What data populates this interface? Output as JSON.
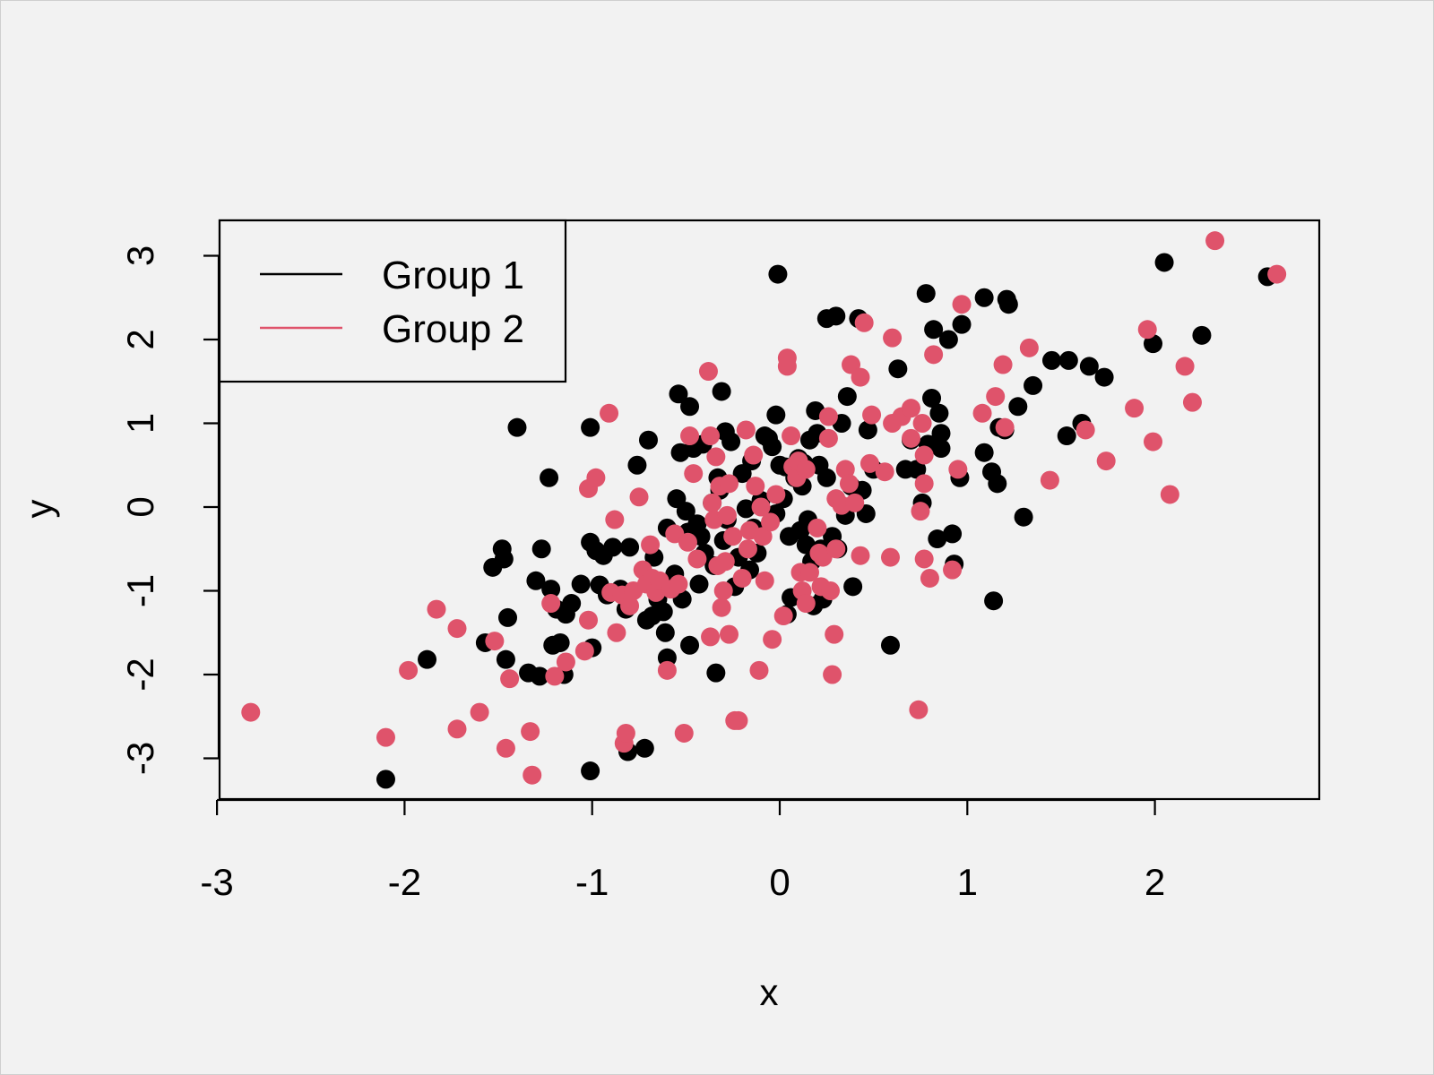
{
  "chart_data": {
    "type": "scatter",
    "title": "",
    "xlabel": "x",
    "ylabel": "y",
    "xlim": [
      -3,
      2.85
    ],
    "ylim": [
      -3.45,
      3.45
    ],
    "x_ticks": [
      "-3",
      "-2",
      "-1",
      "0",
      "1",
      "2"
    ],
    "y_ticks": [
      "-3",
      "-2",
      "-1",
      "0",
      "1",
      "2",
      "3"
    ],
    "grid": false,
    "legend_position": "top-left",
    "colors": {
      "group1": "#000000",
      "group2": "#df536b",
      "background": "#f2f2f2"
    },
    "series": [
      {
        "name": "Group 1",
        "color": "#000000",
        "points": [
          [
            -2.1,
            -3.25
          ],
          [
            -1.88,
            -1.82
          ],
          [
            -1.57,
            -1.62
          ],
          [
            -1.53,
            -0.72
          ],
          [
            -1.48,
            -0.5
          ],
          [
            -1.47,
            -0.62
          ],
          [
            -1.46,
            -1.82
          ],
          [
            -1.45,
            -1.32
          ],
          [
            -1.4,
            0.95
          ],
          [
            -1.34,
            -1.98
          ],
          [
            -1.3,
            -0.88
          ],
          [
            -1.28,
            -2.02
          ],
          [
            -1.27,
            -0.5
          ],
          [
            -1.23,
            0.35
          ],
          [
            -1.22,
            -0.98
          ],
          [
            -1.21,
            -1.65
          ],
          [
            -1.19,
            -1.22
          ],
          [
            -1.17,
            -1.62
          ],
          [
            -1.15,
            -2.0
          ],
          [
            -1.14,
            -1.28
          ],
          [
            -1.11,
            -1.15
          ],
          [
            -1.06,
            -0.92
          ],
          [
            -1.01,
            0.95
          ],
          [
            -1.01,
            -0.42
          ],
          [
            -1.01,
            -3.15
          ],
          [
            -1.0,
            -1.68
          ],
          [
            -0.98,
            -0.52
          ],
          [
            -0.96,
            -0.93
          ],
          [
            -0.94,
            -0.58
          ],
          [
            -0.92,
            -1.05
          ],
          [
            -0.89,
            -0.48
          ],
          [
            -0.85,
            -0.98
          ],
          [
            -0.82,
            -1.22
          ],
          [
            -0.81,
            -2.92
          ],
          [
            -0.8,
            -0.48
          ],
          [
            -0.76,
            0.5
          ],
          [
            -0.72,
            -2.88
          ],
          [
            -0.71,
            -1.35
          ],
          [
            -0.7,
            0.8
          ],
          [
            -0.68,
            -1.3
          ],
          [
            -0.67,
            -0.6
          ],
          [
            -0.65,
            -1.1
          ],
          [
            -0.62,
            -1.25
          ],
          [
            -0.61,
            -1.5
          ],
          [
            -0.6,
            -0.25
          ],
          [
            -0.6,
            -1.8
          ],
          [
            -0.58,
            -0.92
          ],
          [
            -0.56,
            -0.8
          ],
          [
            -0.55,
            0.1
          ],
          [
            -0.54,
            1.35
          ],
          [
            -0.53,
            0.65
          ],
          [
            -0.52,
            -1.1
          ],
          [
            -0.5,
            -0.05
          ],
          [
            -0.49,
            -0.3
          ],
          [
            -0.48,
            1.2
          ],
          [
            -0.48,
            -1.65
          ],
          [
            -0.46,
            0.7
          ],
          [
            -0.44,
            -0.2
          ],
          [
            -0.43,
            -0.92
          ],
          [
            -0.42,
            -0.35
          ],
          [
            -0.41,
            0.75
          ],
          [
            -0.4,
            -0.55
          ],
          [
            -0.36,
            0.05
          ],
          [
            -0.35,
            -0.7
          ],
          [
            -0.34,
            -1.98
          ],
          [
            -0.33,
            0.35
          ],
          [
            -0.32,
            0.2
          ],
          [
            -0.31,
            1.38
          ],
          [
            -0.3,
            -0.4
          ],
          [
            -0.29,
            0.9
          ],
          [
            -0.28,
            -0.15
          ],
          [
            -0.26,
            0.78
          ],
          [
            -0.24,
            -0.95
          ],
          [
            -0.22,
            -0.6
          ],
          [
            -0.2,
            0.4
          ],
          [
            -0.18,
            -0.02
          ],
          [
            -0.16,
            -0.75
          ],
          [
            -0.15,
            0.55
          ],
          [
            -0.14,
            -0.25
          ],
          [
            -0.12,
            -0.55
          ],
          [
            -0.1,
            0.08
          ],
          [
            -0.08,
            0.85
          ],
          [
            -0.06,
            0.82
          ],
          [
            -0.04,
            0.72
          ],
          [
            -0.02,
            -0.08
          ],
          [
            -0.02,
            1.1
          ],
          [
            -0.01,
            2.78
          ],
          [
            0.0,
            0.5
          ],
          [
            0.02,
            0.1
          ],
          [
            0.03,
            0.48
          ],
          [
            0.04,
            -1.28
          ],
          [
            0.05,
            -0.35
          ],
          [
            0.06,
            -1.08
          ],
          [
            0.08,
            0.35
          ],
          [
            0.1,
            0.58
          ],
          [
            0.11,
            -0.28
          ],
          [
            0.12,
            0.25
          ],
          [
            0.13,
            0.52
          ],
          [
            0.14,
            -0.45
          ],
          [
            0.15,
            -0.15
          ],
          [
            0.16,
            0.8
          ],
          [
            0.17,
            -0.65
          ],
          [
            0.18,
            -1.18
          ],
          [
            0.19,
            1.15
          ],
          [
            0.2,
            0.88
          ],
          [
            0.21,
            0.5
          ],
          [
            0.22,
            -0.5
          ],
          [
            0.23,
            -1.1
          ],
          [
            0.25,
            0.35
          ],
          [
            0.25,
            2.25
          ],
          [
            0.28,
            -0.35
          ],
          [
            0.3,
            2.28
          ],
          [
            0.31,
            -0.5
          ],
          [
            0.33,
            1.0
          ],
          [
            0.35,
            -0.1
          ],
          [
            0.36,
            1.32
          ],
          [
            0.38,
            0.25
          ],
          [
            0.39,
            -0.95
          ],
          [
            0.42,
            2.25
          ],
          [
            0.44,
            0.2
          ],
          [
            0.46,
            -0.08
          ],
          [
            0.47,
            0.92
          ],
          [
            0.5,
            0.45
          ],
          [
            0.59,
            -1.65
          ],
          [
            0.63,
            1.65
          ],
          [
            0.67,
            0.45
          ],
          [
            0.7,
            0.8
          ],
          [
            0.73,
            0.45
          ],
          [
            0.76,
            0.05
          ],
          [
            0.78,
            2.55
          ],
          [
            0.79,
            0.75
          ],
          [
            0.81,
            1.3
          ],
          [
            0.82,
            2.12
          ],
          [
            0.84,
            -0.38
          ],
          [
            0.85,
            1.12
          ],
          [
            0.86,
            0.88
          ],
          [
            0.86,
            0.7
          ],
          [
            0.9,
            2.0
          ],
          [
            0.92,
            -0.32
          ],
          [
            0.93,
            -0.68
          ],
          [
            0.96,
            0.35
          ],
          [
            0.97,
            2.18
          ],
          [
            1.09,
            0.65
          ],
          [
            1.09,
            2.5
          ],
          [
            1.13,
            0.42
          ],
          [
            1.14,
            -1.12
          ],
          [
            1.16,
            0.28
          ],
          [
            1.17,
            0.95
          ],
          [
            1.2,
            0.92
          ],
          [
            1.21,
            2.48
          ],
          [
            1.22,
            2.42
          ],
          [
            1.27,
            1.2
          ],
          [
            1.3,
            -0.12
          ],
          [
            1.35,
            1.45
          ],
          [
            1.45,
            1.75
          ],
          [
            1.53,
            0.85
          ],
          [
            1.54,
            1.75
          ],
          [
            1.61,
            1.0
          ],
          [
            1.65,
            1.68
          ],
          [
            1.73,
            1.55
          ],
          [
            1.99,
            1.95
          ],
          [
            2.05,
            2.92
          ],
          [
            2.25,
            2.05
          ],
          [
            2.6,
            2.75
          ]
        ]
      },
      {
        "name": "Group 2",
        "color": "#df536b",
        "points": [
          [
            -2.82,
            -2.45
          ],
          [
            -2.1,
            -2.75
          ],
          [
            -1.98,
            -1.95
          ],
          [
            -1.83,
            -1.22
          ],
          [
            -1.72,
            -1.45
          ],
          [
            -1.72,
            -2.65
          ],
          [
            -1.6,
            -2.45
          ],
          [
            -1.52,
            -1.6
          ],
          [
            -1.46,
            -2.88
          ],
          [
            -1.44,
            -2.05
          ],
          [
            -1.33,
            -2.68
          ],
          [
            -1.32,
            -3.2
          ],
          [
            -1.22,
            -1.15
          ],
          [
            -1.2,
            -2.02
          ],
          [
            -1.14,
            -1.85
          ],
          [
            -1.04,
            -1.72
          ],
          [
            -1.02,
            -1.35
          ],
          [
            -1.02,
            0.22
          ],
          [
            -0.98,
            0.35
          ],
          [
            -0.91,
            1.12
          ],
          [
            -0.9,
            -1.02
          ],
          [
            -0.88,
            -0.15
          ],
          [
            -0.87,
            -1.5
          ],
          [
            -0.84,
            -1.05
          ],
          [
            -0.83,
            -2.82
          ],
          [
            -0.82,
            -2.7
          ],
          [
            -0.8,
            -1.18
          ],
          [
            -0.78,
            -1.0
          ],
          [
            -0.75,
            0.12
          ],
          [
            -0.73,
            -0.75
          ],
          [
            -0.71,
            -0.92
          ],
          [
            -0.69,
            -0.45
          ],
          [
            -0.68,
            -0.85
          ],
          [
            -0.66,
            -1.02
          ],
          [
            -0.64,
            -0.88
          ],
          [
            -0.6,
            -1.95
          ],
          [
            -0.58,
            -0.98
          ],
          [
            -0.56,
            -0.32
          ],
          [
            -0.54,
            -0.92
          ],
          [
            -0.51,
            -2.7
          ],
          [
            -0.49,
            -0.42
          ],
          [
            -0.48,
            0.85
          ],
          [
            -0.46,
            0.4
          ],
          [
            -0.44,
            -0.62
          ],
          [
            -0.38,
            1.62
          ],
          [
            -0.37,
            0.85
          ],
          [
            -0.37,
            -1.55
          ],
          [
            -0.36,
            0.05
          ],
          [
            -0.35,
            -0.15
          ],
          [
            -0.34,
            0.6
          ],
          [
            -0.33,
            -0.7
          ],
          [
            -0.32,
            0.25
          ],
          [
            -0.31,
            -1.2
          ],
          [
            -0.3,
            -1.0
          ],
          [
            -0.29,
            -0.65
          ],
          [
            -0.28,
            -0.1
          ],
          [
            -0.27,
            0.28
          ],
          [
            -0.27,
            -1.52
          ],
          [
            -0.25,
            -0.35
          ],
          [
            -0.24,
            -2.55
          ],
          [
            -0.22,
            -2.55
          ],
          [
            -0.2,
            -0.85
          ],
          [
            -0.18,
            0.92
          ],
          [
            -0.17,
            -0.5
          ],
          [
            -0.16,
            -0.28
          ],
          [
            -0.14,
            0.62
          ],
          [
            -0.13,
            0.25
          ],
          [
            -0.11,
            -1.95
          ],
          [
            -0.1,
            0.0
          ],
          [
            -0.09,
            -0.35
          ],
          [
            -0.08,
            -0.88
          ],
          [
            -0.05,
            -0.18
          ],
          [
            -0.04,
            -1.58
          ],
          [
            -0.02,
            0.15
          ],
          [
            0.02,
            -1.3
          ],
          [
            0.04,
            1.78
          ],
          [
            0.04,
            1.68
          ],
          [
            0.06,
            0.85
          ],
          [
            0.07,
            0.48
          ],
          [
            0.09,
            0.35
          ],
          [
            0.1,
            0.55
          ],
          [
            0.11,
            -0.78
          ],
          [
            0.12,
            -1.0
          ],
          [
            0.14,
            0.45
          ],
          [
            0.14,
            -1.15
          ],
          [
            0.16,
            -0.78
          ],
          [
            0.2,
            -0.25
          ],
          [
            0.21,
            -0.55
          ],
          [
            0.22,
            -0.95
          ],
          [
            0.23,
            -0.6
          ],
          [
            0.26,
            1.08
          ],
          [
            0.26,
            0.82
          ],
          [
            0.27,
            -1.0
          ],
          [
            0.28,
            -2.0
          ],
          [
            0.29,
            -1.52
          ],
          [
            0.3,
            0.1
          ],
          [
            0.3,
            -0.5
          ],
          [
            0.33,
            0.02
          ],
          [
            0.35,
            0.45
          ],
          [
            0.37,
            0.28
          ],
          [
            0.38,
            1.7
          ],
          [
            0.4,
            0.05
          ],
          [
            0.43,
            1.55
          ],
          [
            0.43,
            -0.58
          ],
          [
            0.45,
            2.2
          ],
          [
            0.48,
            0.52
          ],
          [
            0.49,
            1.1
          ],
          [
            0.56,
            0.42
          ],
          [
            0.59,
            -0.6
          ],
          [
            0.6,
            2.02
          ],
          [
            0.6,
            1.0
          ],
          [
            0.65,
            1.08
          ],
          [
            0.7,
            0.82
          ],
          [
            0.7,
            1.18
          ],
          [
            0.74,
            -2.42
          ],
          [
            0.75,
            -0.05
          ],
          [
            0.76,
            1.0
          ],
          [
            0.77,
            0.28
          ],
          [
            0.77,
            0.62
          ],
          [
            0.77,
            -0.62
          ],
          [
            0.8,
            -0.85
          ],
          [
            0.82,
            1.82
          ],
          [
            0.92,
            -0.75
          ],
          [
            0.95,
            0.45
          ],
          [
            0.97,
            2.42
          ],
          [
            1.08,
            1.12
          ],
          [
            1.15,
            1.32
          ],
          [
            1.19,
            1.7
          ],
          [
            1.2,
            0.95
          ],
          [
            1.33,
            1.9
          ],
          [
            1.44,
            0.32
          ],
          [
            1.63,
            0.92
          ],
          [
            1.74,
            0.55
          ],
          [
            1.89,
            1.18
          ],
          [
            1.96,
            2.12
          ],
          [
            1.99,
            0.78
          ],
          [
            2.08,
            0.15
          ],
          [
            2.16,
            1.68
          ],
          [
            2.2,
            1.25
          ],
          [
            2.32,
            3.18
          ],
          [
            2.65,
            2.78
          ]
        ]
      }
    ]
  }
}
